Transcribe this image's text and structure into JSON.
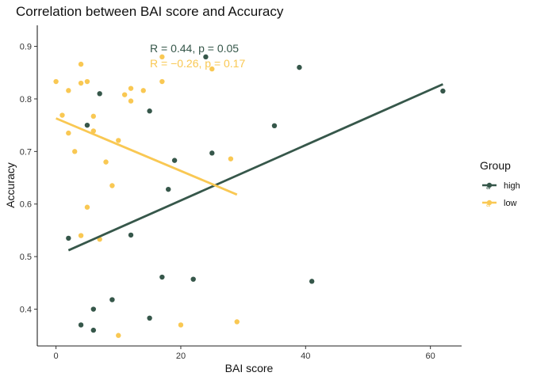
{
  "chart_data": {
    "type": "scatter",
    "title": "Correlation between BAI score and Accuracy",
    "xlabel": "BAI score",
    "ylabel": "Accuracy",
    "xlim": [
      -3,
      65
    ],
    "ylim": [
      0.33,
      0.94
    ],
    "xticks": [
      "0",
      "20",
      "40",
      "60"
    ],
    "xtick_values": [
      0,
      20,
      40,
      60
    ],
    "yticks": [
      "0.4",
      "0.5",
      "0.6",
      "0.7",
      "0.8",
      "0.9"
    ],
    "ytick_values": [
      0.4,
      0.5,
      0.6,
      0.7,
      0.8,
      0.9
    ],
    "grid": false,
    "legend": {
      "title": "Group",
      "placement": "right",
      "glyph": "a"
    },
    "series": [
      {
        "name": "high",
        "color": "#36574a",
        "points": [
          [
            2,
            0.535
          ],
          [
            4,
            0.37
          ],
          [
            5,
            0.75
          ],
          [
            6,
            0.4
          ],
          [
            6,
            0.36
          ],
          [
            7,
            0.81
          ],
          [
            9,
            0.418
          ],
          [
            12,
            0.541
          ],
          [
            15,
            0.777
          ],
          [
            15,
            0.383
          ],
          [
            17,
            0.461
          ],
          [
            18,
            0.628
          ],
          [
            19,
            0.683
          ],
          [
            22,
            0.457
          ],
          [
            24,
            0.88
          ],
          [
            25,
            0.697
          ],
          [
            35,
            0.749
          ],
          [
            39,
            0.86
          ],
          [
            41,
            0.453
          ],
          [
            62,
            0.815
          ]
        ],
        "fit": {
          "x0": 2,
          "y0": 0.512,
          "x1": 62,
          "y1": 0.828
        },
        "annotation": "R = 0.44, p = 0.05"
      },
      {
        "name": "low",
        "color": "#f9c853",
        "points": [
          [
            0,
            0.833
          ],
          [
            1,
            0.769
          ],
          [
            2,
            0.816
          ],
          [
            2,
            0.735
          ],
          [
            3,
            0.7
          ],
          [
            4,
            0.866
          ],
          [
            4,
            0.83
          ],
          [
            4,
            0.54
          ],
          [
            5,
            0.833
          ],
          [
            5,
            0.594
          ],
          [
            6,
            0.767
          ],
          [
            6,
            0.739
          ],
          [
            7,
            0.533
          ],
          [
            8,
            0.68
          ],
          [
            9,
            0.635
          ],
          [
            10,
            0.721
          ],
          [
            10,
            0.35
          ],
          [
            11,
            0.808
          ],
          [
            12,
            0.82
          ],
          [
            12,
            0.796
          ],
          [
            14,
            0.816
          ],
          [
            17,
            0.833
          ],
          [
            17,
            0.88
          ],
          [
            20,
            0.37
          ],
          [
            25,
            0.857
          ],
          [
            28,
            0.686
          ],
          [
            29,
            0.376
          ]
        ],
        "fit": {
          "x0": 0,
          "y0": 0.763,
          "x1": 29,
          "y1": 0.618
        },
        "annotation": "R = −0.26, p = 0.17"
      }
    ]
  }
}
